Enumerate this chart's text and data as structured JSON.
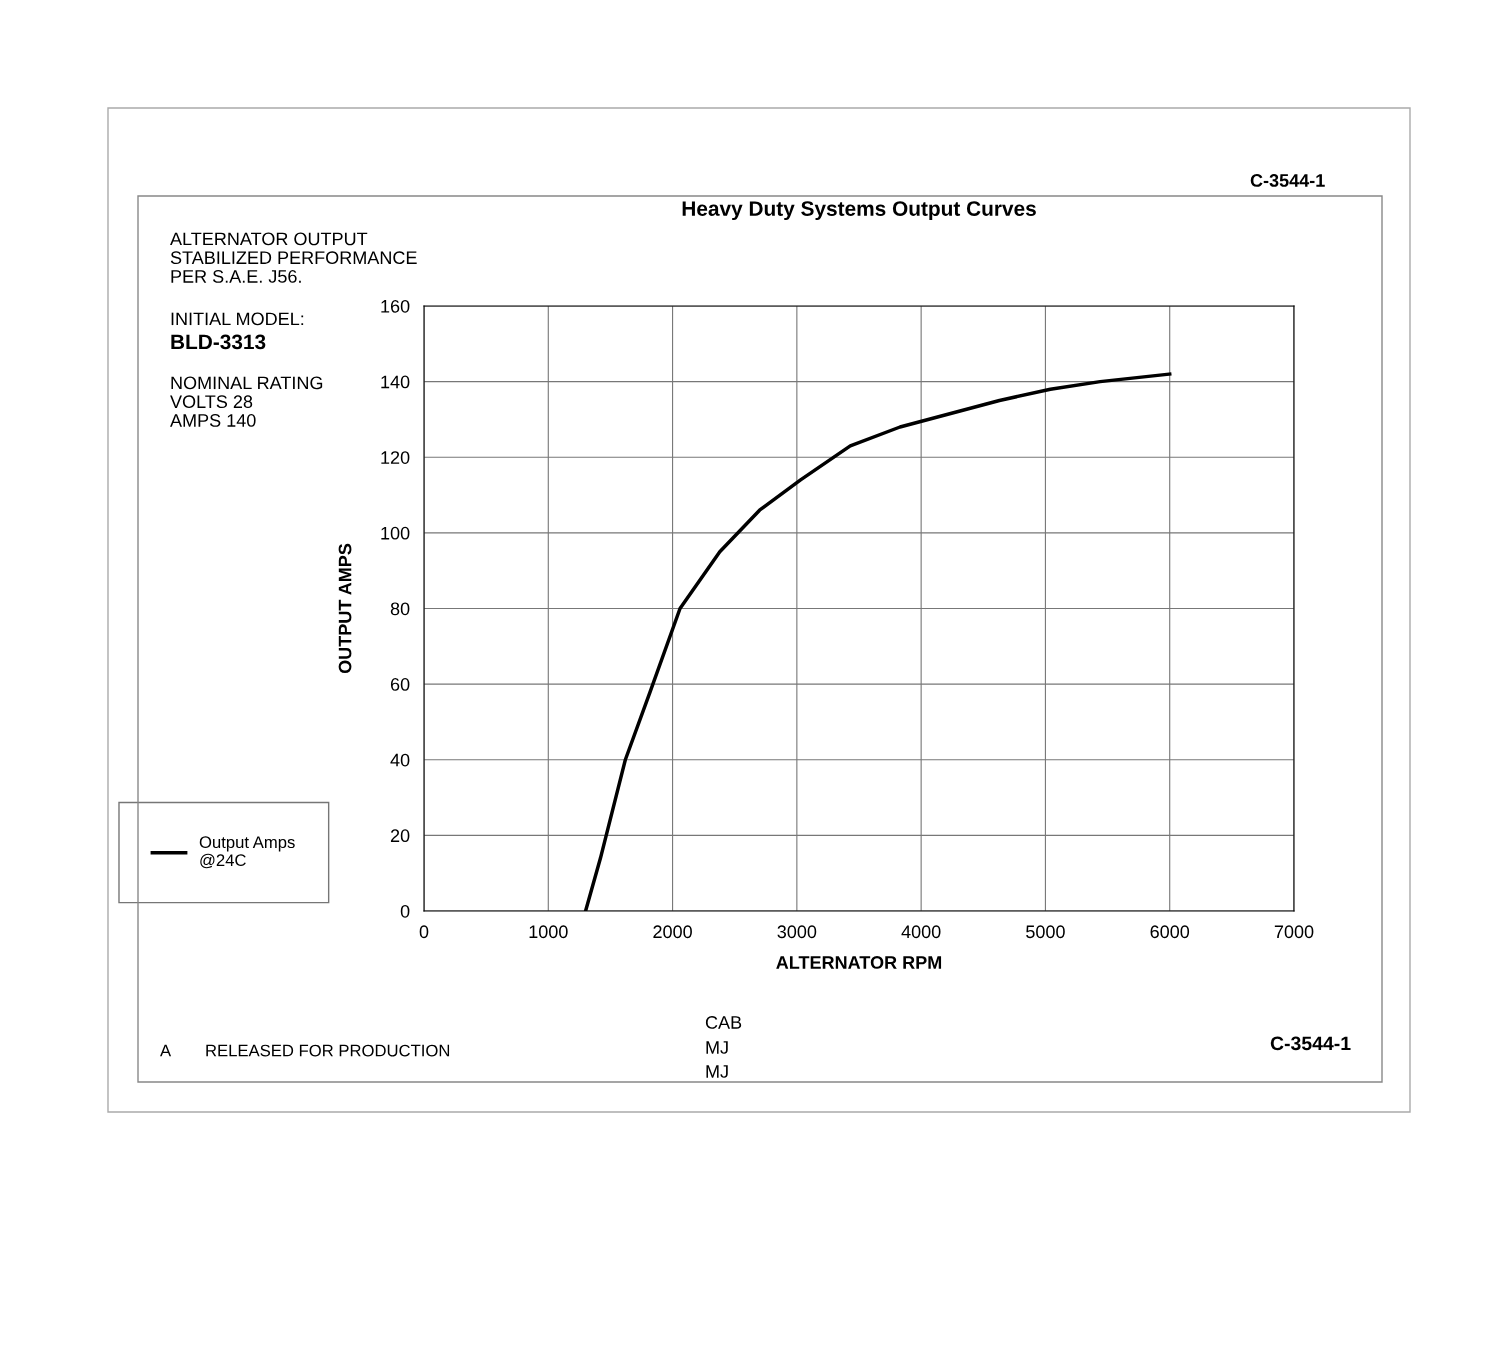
{
  "chart_data": {
    "type": "line",
    "title": "Heavy Duty Systems Output Curves",
    "xlabel": "ALTERNATOR RPM",
    "ylabel": "OUTPUT AMPS",
    "series": [
      {
        "name": "Output Amps\n@24C",
        "color": "#000000",
        "x": [
          1300,
          1420,
          1620,
          1820,
          2060,
          2380,
          2700,
          3030,
          3430,
          3830,
          4630,
          5040,
          5440,
          6000
        ],
        "values": [
          0,
          14,
          40,
          58,
          80,
          95,
          106,
          114,
          123,
          128,
          135,
          138,
          140,
          142
        ]
      }
    ],
    "xlim": [
      0,
      7000
    ],
    "xticks": [
      0,
      1000,
      2000,
      3000,
      4000,
      5000,
      6000,
      7000
    ],
    "ylim": [
      0,
      160
    ],
    "yticks": [
      0,
      20,
      40,
      60,
      80,
      100,
      120,
      140,
      160
    ],
    "grid": true,
    "legend": "left",
    "marker": "none",
    "line_style": "solid",
    "annotations": [
      "ALTERNATOR OUTPUT\nSTABILIZED PERFORMANCE\nPER S.A.E. J56.",
      "INITIAL MODEL:",
      "BLD-3313",
      "NOMINAL RATING\nVOLTS 28\nAMPS 140",
      "C-3544-1",
      "A",
      "RELEASED FOR PRODUCTION",
      "CAB",
      "MJ",
      "MJ",
      "C-3544-1"
    ]
  }
}
